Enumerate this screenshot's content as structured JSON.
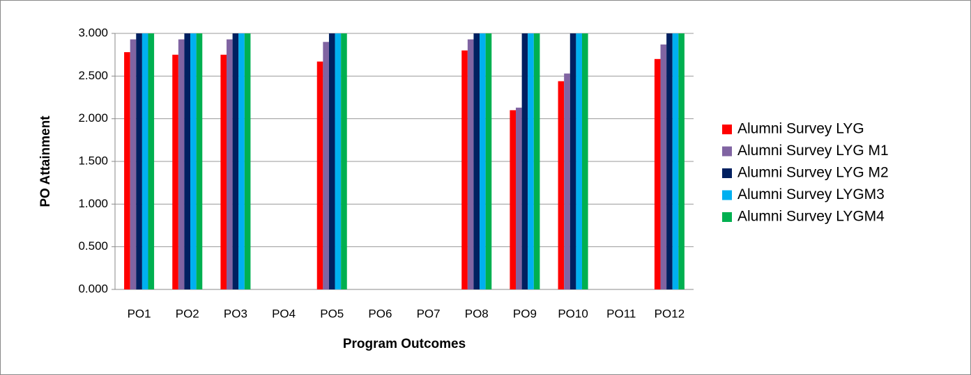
{
  "chart_data": {
    "type": "bar",
    "x_label": "Program Outcomes",
    "y_label": "PO Attainment",
    "categories": [
      "PO1",
      "PO2",
      "PO3",
      "PO4",
      "PO5",
      "PO6",
      "PO7",
      "PO8",
      "PO9",
      "PO10",
      "PO11",
      "PO12"
    ],
    "series": [
      {
        "name": "Alumni Survey LYG",
        "color": "#ff0000",
        "values": [
          2.78,
          2.75,
          2.75,
          null,
          2.67,
          null,
          null,
          2.8,
          2.1,
          2.44,
          null,
          2.7
        ]
      },
      {
        "name": "Alumni Survey LYG M1",
        "color": "#8064a2",
        "values": [
          2.93,
          2.93,
          2.93,
          null,
          2.9,
          null,
          null,
          2.93,
          2.13,
          2.53,
          null,
          2.87
        ]
      },
      {
        "name": "Alumni Survey LYG M2",
        "color": "#002060",
        "values": [
          3,
          3,
          3,
          null,
          3,
          null,
          null,
          3,
          3,
          3,
          null,
          3
        ]
      },
      {
        "name": "Alumni Survey LYGM3",
        "color": "#00b0f0",
        "values": [
          3,
          3,
          3,
          null,
          3,
          null,
          null,
          3,
          3,
          3,
          null,
          3
        ]
      },
      {
        "name": "Alumni Survey LYGM4",
        "color": "#00b050",
        "values": [
          3,
          3,
          3,
          null,
          3,
          null,
          null,
          3,
          3,
          3,
          null,
          3
        ]
      }
    ],
    "ylim": [
      0,
      3
    ],
    "yticks": [
      {
        "value": 0,
        "label": "0.000"
      },
      {
        "value": 0.5,
        "label": "0.500"
      },
      {
        "value": 1,
        "label": "1.000"
      },
      {
        "value": 1.5,
        "label": "1.500"
      },
      {
        "value": 2,
        "label": "2.000"
      },
      {
        "value": 2.5,
        "label": "2.500"
      },
      {
        "value": 3,
        "label": "3.000"
      }
    ],
    "grid": true,
    "legend": "right"
  }
}
